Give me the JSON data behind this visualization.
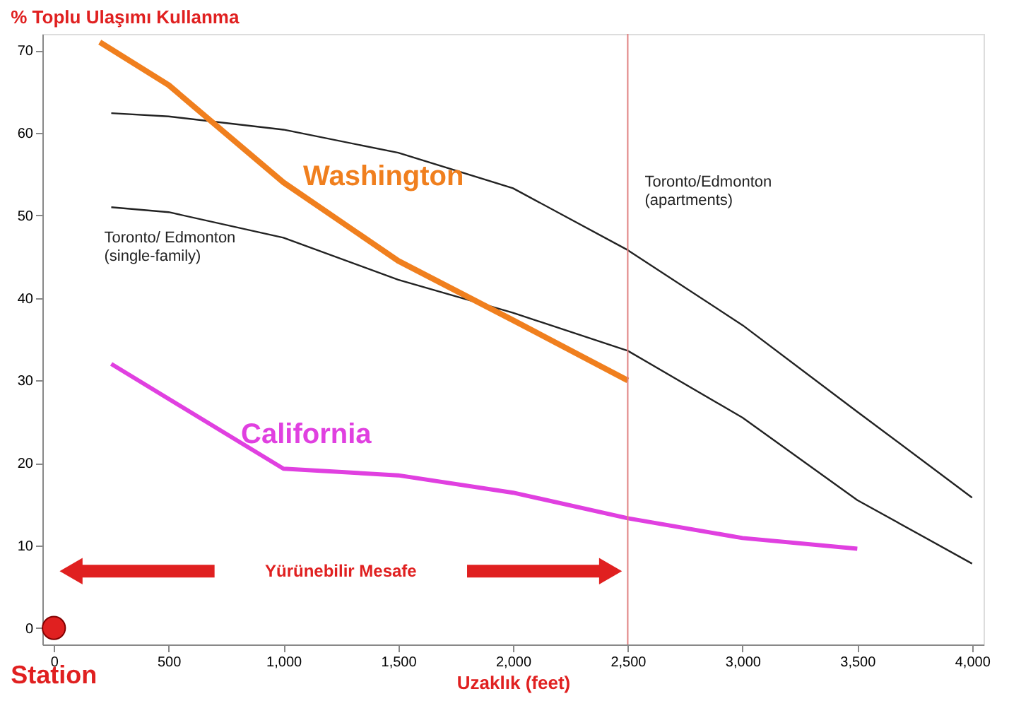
{
  "chart_data": {
    "type": "line",
    "ylabel": "% Toplu Ulaşımı Kullanma",
    "xlabel": "Uzaklık (feet)",
    "xlim": [
      -50,
      4050
    ],
    "ylim": [
      -2,
      72
    ],
    "xticks": [
      0,
      500,
      {
        "value": 1000,
        "label": "1,000"
      },
      {
        "value": 1500,
        "label": "1,500"
      },
      {
        "value": 2000,
        "label": "2,000"
      },
      {
        "value": 2500,
        "label": "2,500"
      },
      {
        "value": 3000,
        "label": "3,000"
      },
      {
        "value": 3500,
        "label": "3,500"
      },
      {
        "value": 4000,
        "label": "4,000"
      }
    ],
    "yticks": [
      0,
      10,
      20,
      30,
      40,
      50,
      60,
      70
    ],
    "grid": false,
    "marker": "none",
    "line_style": "solid",
    "series": [
      {
        "name": "Toronto/Edmonton (apartments)",
        "color": "#222222",
        "x": [
          250,
          500,
          1000,
          1500,
          2000,
          2500,
          3000,
          3500,
          4000
        ],
        "values": [
          62.4,
          62,
          60.4,
          57.6,
          53.3,
          45.8,
          36.7,
          26.2,
          15.8
        ]
      },
      {
        "name": "Toronto/ Edmonton (single-family)",
        "color": "#222222",
        "x": [
          250,
          500,
          1000,
          1500,
          2000,
          2500,
          3000,
          3500,
          4000
        ],
        "values": [
          51,
          50.4,
          47.3,
          42.2,
          38.2,
          33.6,
          25.5,
          15.5,
          7.8
        ]
      },
      {
        "name": "Washington",
        "color": "#f07f1e",
        "x": [
          200,
          500,
          1000,
          1500,
          2000,
          2500
        ],
        "values": [
          71,
          65.8,
          54,
          44.5,
          37.3,
          30
        ]
      },
      {
        "name": "California",
        "color": "#e040e0",
        "x": [
          250,
          1000,
          1500,
          2000,
          2500,
          3000,
          3500
        ],
        "values": [
          32,
          19.3,
          18.5,
          16.4,
          13.3,
          10.9,
          9.6
        ]
      },
      {
        "name": "Station",
        "type": "scatter",
        "marker": "circle",
        "color": "#e02020",
        "x": [
          0
        ],
        "values": [
          0
        ]
      }
    ],
    "ref_lines": [
      {
        "axis": "x",
        "value": 2500,
        "color": "#e08080"
      }
    ],
    "annotations": [
      "Yürünebilir Mesafe"
    ]
  }
}
